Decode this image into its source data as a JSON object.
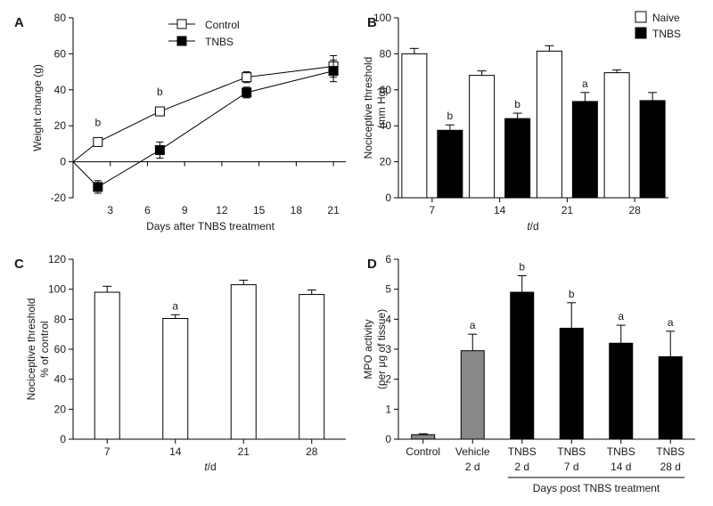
{
  "figure": {
    "panels": [
      "A",
      "B",
      "C",
      "D"
    ]
  },
  "chart_data": [
    {
      "panel": "A",
      "type": "line",
      "title": "",
      "xlabel": "Days after TNBS treatment",
      "ylabel": "Weight change (g)",
      "xlim": [
        0,
        22
      ],
      "ylim": [
        -20,
        80
      ],
      "xticks": [
        3,
        6,
        9,
        12,
        15,
        18,
        21
      ],
      "yticks": [
        -20,
        0,
        20,
        40,
        60,
        80
      ],
      "legend": {
        "position": "top-center",
        "entries": [
          "Control",
          "TNBS"
        ]
      },
      "series": [
        {
          "name": "Control",
          "marker": "open-square",
          "x": [
            0,
            2,
            7,
            14,
            21
          ],
          "y": [
            0,
            11,
            28,
            47,
            53
          ],
          "err": [
            0,
            1.5,
            2,
            3,
            6
          ],
          "labels": [
            "",
            "b",
            "b",
            "",
            ""
          ]
        },
        {
          "name": "TNBS",
          "marker": "filled-square",
          "x": [
            0,
            2,
            7,
            14,
            21
          ],
          "y": [
            0,
            -14,
            6.5,
            38.5,
            50.5
          ],
          "err": [
            0,
            3.5,
            4.5,
            3,
            6
          ],
          "labels": [
            "",
            "",
            "",
            "",
            ""
          ]
        }
      ]
    },
    {
      "panel": "B",
      "type": "bar",
      "xlabel": "t/d",
      "ylabel": "Nociceptive threshold (mm Hg)",
      "ylabel_lines": [
        "Nociceptive threshold",
        "(mm Hg)"
      ],
      "ylim": [
        0,
        100
      ],
      "yticks": [
        0,
        20,
        40,
        60,
        80,
        100
      ],
      "categories": [
        "7",
        "14",
        "21",
        "28"
      ],
      "legend": {
        "position": "top-right",
        "entries": [
          "Naive",
          "TNBS"
        ]
      },
      "series": [
        {
          "name": "Naive",
          "fill": "#ffffff",
          "values": [
            80,
            68,
            81.5,
            69.5
          ],
          "err": [
            3,
            2.5,
            3,
            1.5
          ],
          "labels": [
            "",
            "",
            "",
            ""
          ]
        },
        {
          "name": "TNBS",
          "fill": "#000000",
          "values": [
            37.5,
            44,
            53.5,
            54
          ],
          "err": [
            3,
            3,
            5,
            4.5
          ],
          "labels": [
            "b",
            "b",
            "a",
            ""
          ]
        }
      ]
    },
    {
      "panel": "C",
      "type": "bar",
      "xlabel": "t/d",
      "ylabel": "Nociceptive threshold % of control",
      "ylabel_lines": [
        "Nociceptive threshold",
        "% of control"
      ],
      "ylim": [
        0,
        120
      ],
      "yticks": [
        0,
        20,
        40,
        60,
        80,
        100,
        120
      ],
      "categories": [
        "7",
        "14",
        "21",
        "28"
      ],
      "series": [
        {
          "name": "Nociceptive threshold",
          "fill": "#ffffff",
          "values": [
            98,
            80.5,
            103,
            96.5
          ],
          "err": [
            4,
            2.5,
            3,
            3
          ],
          "labels": [
            "",
            "a",
            "",
            ""
          ]
        }
      ]
    },
    {
      "panel": "D",
      "type": "bar",
      "xlabel": "Days post TNBS treatment",
      "ylabel": "MPO activity (per μg of tissue)",
      "ylabel_lines": [
        "MPO activity",
        "(per μg of tissue)"
      ],
      "ylim": [
        0,
        6
      ],
      "yticks": [
        0,
        1,
        2,
        3,
        4,
        5,
        6
      ],
      "categories": [
        [
          "Control"
        ],
        [
          "Vehicle",
          "2 d"
        ],
        [
          "TNBS",
          "2 d"
        ],
        [
          "TNBS",
          "7 d"
        ],
        [
          "TNBS",
          "14 d"
        ],
        [
          "TNBS",
          "28 d"
        ]
      ],
      "series": [
        {
          "name": "MPO activity",
          "values": [
            0.15,
            2.95,
            4.9,
            3.7,
            3.2,
            2.75
          ],
          "err": [
            0.03,
            0.55,
            0.55,
            0.85,
            0.6,
            0.85
          ],
          "fills": [
            "#888888",
            "#888888",
            "#000000",
            "#000000",
            "#000000",
            "#000000"
          ],
          "labels": [
            "",
            "a",
            "b",
            "b",
            "a",
            "a"
          ]
        }
      ],
      "group_bracket": {
        "from_index": 2,
        "to_index": 5
      }
    }
  ]
}
